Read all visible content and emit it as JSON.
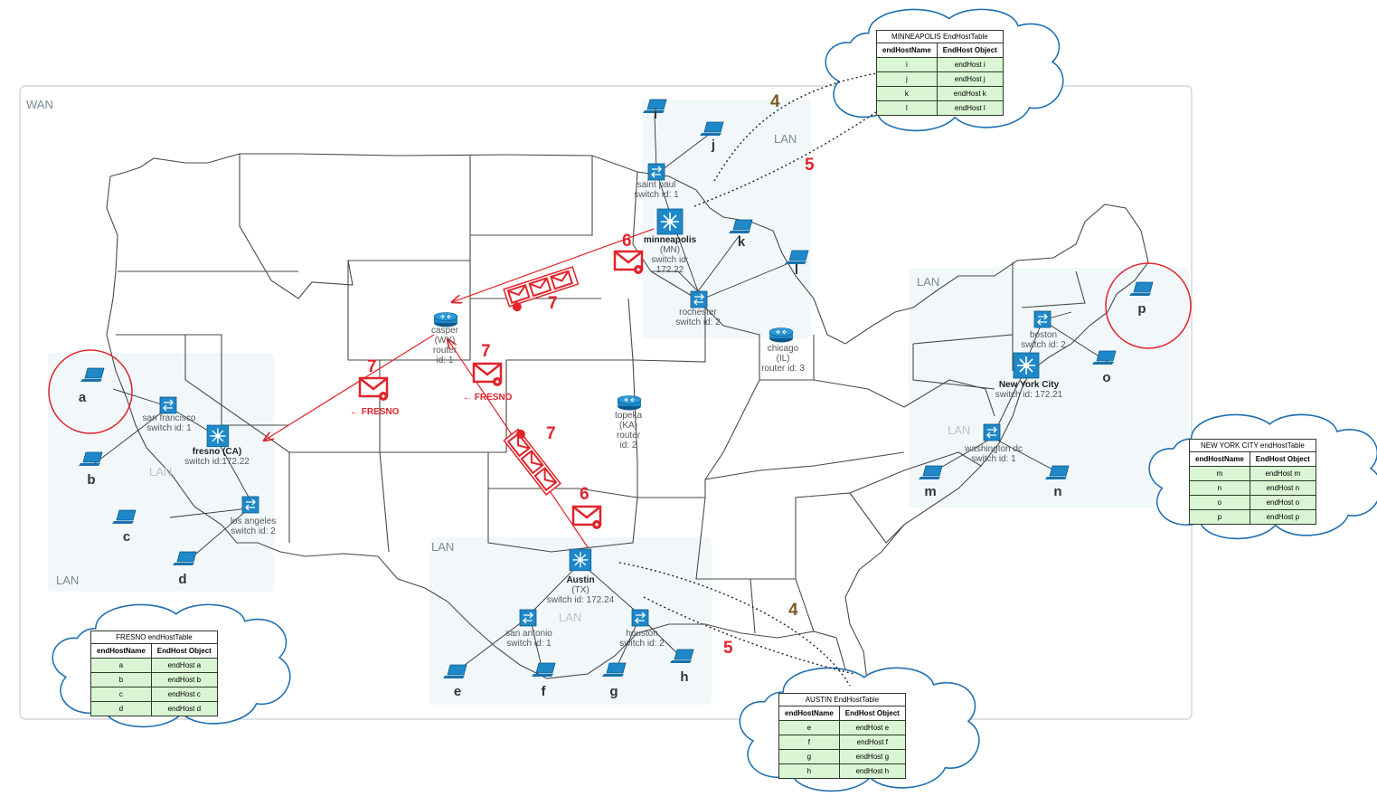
{
  "wan_label": "WAN",
  "lan_label": "LAN",
  "lans": [
    "LAN",
    "LAN",
    "LAN",
    "LAN",
    "LAN",
    "LAN",
    "LAN"
  ],
  "routers": {
    "casper": {
      "name": "casper",
      "state": "(WY)",
      "kind": "router",
      "id": "id: 1"
    },
    "chicago": {
      "name": "chicago",
      "state": "(IL)",
      "id": "router id: 3"
    },
    "topeka": {
      "name": "topeka",
      "state": "(KA)",
      "kind": "router",
      "id": "id: 2"
    }
  },
  "core_switches": {
    "minneapolis": {
      "name": "minneapolis",
      "state": "(MN)",
      "id1": "switch id:",
      "id2": "172.22"
    },
    "fresno": {
      "name": "fresno (CA)",
      "id": "switch id:172.22"
    },
    "austin": {
      "name": "Austin",
      "state": "(TX)",
      "id": "switch id: 172.24"
    },
    "nyc": {
      "name": "New York City",
      "id": "switch id: 172.21"
    }
  },
  "switches": {
    "saint_paul": {
      "name": "saint paul",
      "id": "switch id: 1"
    },
    "rochester": {
      "name": "rochester",
      "id": "switch id: 2"
    },
    "san_francisco": {
      "name": "san francisco",
      "id": "switch id: 1"
    },
    "los_angeles": {
      "name": "los angeles",
      "id": "switch id: 2"
    },
    "san_antonio": {
      "name": "san antonio",
      "id": "switch id: 1"
    },
    "houston": {
      "name": "houston",
      "id": "switch id: 2"
    },
    "boston": {
      "name": "boston",
      "id": "switch id: 2"
    },
    "washington": {
      "name": "washington dc",
      "id": "switch id: 1"
    }
  },
  "hosts": [
    "a",
    "b",
    "c",
    "d",
    "e",
    "f",
    "g",
    "h",
    "i",
    "j",
    "k",
    "l",
    "m",
    "n",
    "o",
    "p"
  ],
  "steps": {
    "s4a": "4",
    "s5a": "5",
    "s6a": "6",
    "s7a": "7",
    "s7b": "7",
    "s7c": "7",
    "s7d": "7",
    "s6b": "6",
    "s5b": "5",
    "s4b": "4"
  },
  "fresno_tag": "← FRESNO",
  "tables": {
    "minneapolis": {
      "title": "MINNEAPOLIS EndHostTable",
      "headers": [
        "endHostName",
        "EndHost Object"
      ],
      "rows": [
        [
          "i",
          "endHost i"
        ],
        [
          "j",
          "endHost j"
        ],
        [
          "k",
          "endHost k"
        ],
        [
          "l",
          "endHost l"
        ]
      ]
    },
    "nyc": {
      "title": "NEW YORK CITY endHostTable",
      "headers": [
        "endHostName",
        "EndHost Object"
      ],
      "rows": [
        [
          "m",
          "endHost m"
        ],
        [
          "n",
          "endHost n"
        ],
        [
          "o",
          "endHost o"
        ],
        [
          "p",
          "endHost p"
        ]
      ]
    },
    "fresno": {
      "title": "FRESNO endHostTable",
      "headers": [
        "endHostName",
        "EndHost Object"
      ],
      "rows": [
        [
          "a",
          "endHost a"
        ],
        [
          "b",
          "endHost b"
        ],
        [
          "c",
          "endHost c"
        ],
        [
          "d",
          "endHost d"
        ]
      ]
    },
    "austin": {
      "title": "AUSTIN EndHostTable",
      "headers": [
        "endHostName",
        "EndHost Object"
      ],
      "rows": [
        [
          "e",
          "endHost e"
        ],
        [
          "f",
          "endHost f"
        ],
        [
          "g",
          "endHost g"
        ],
        [
          "h",
          "endHost h"
        ]
      ]
    }
  },
  "colors": {
    "accent_red": "#e0232a",
    "device_blue": "#1e88c8",
    "lan_fill": "#eef6f8",
    "table_green": "#d9f5d4",
    "step_brown": "#7a5a26"
  }
}
